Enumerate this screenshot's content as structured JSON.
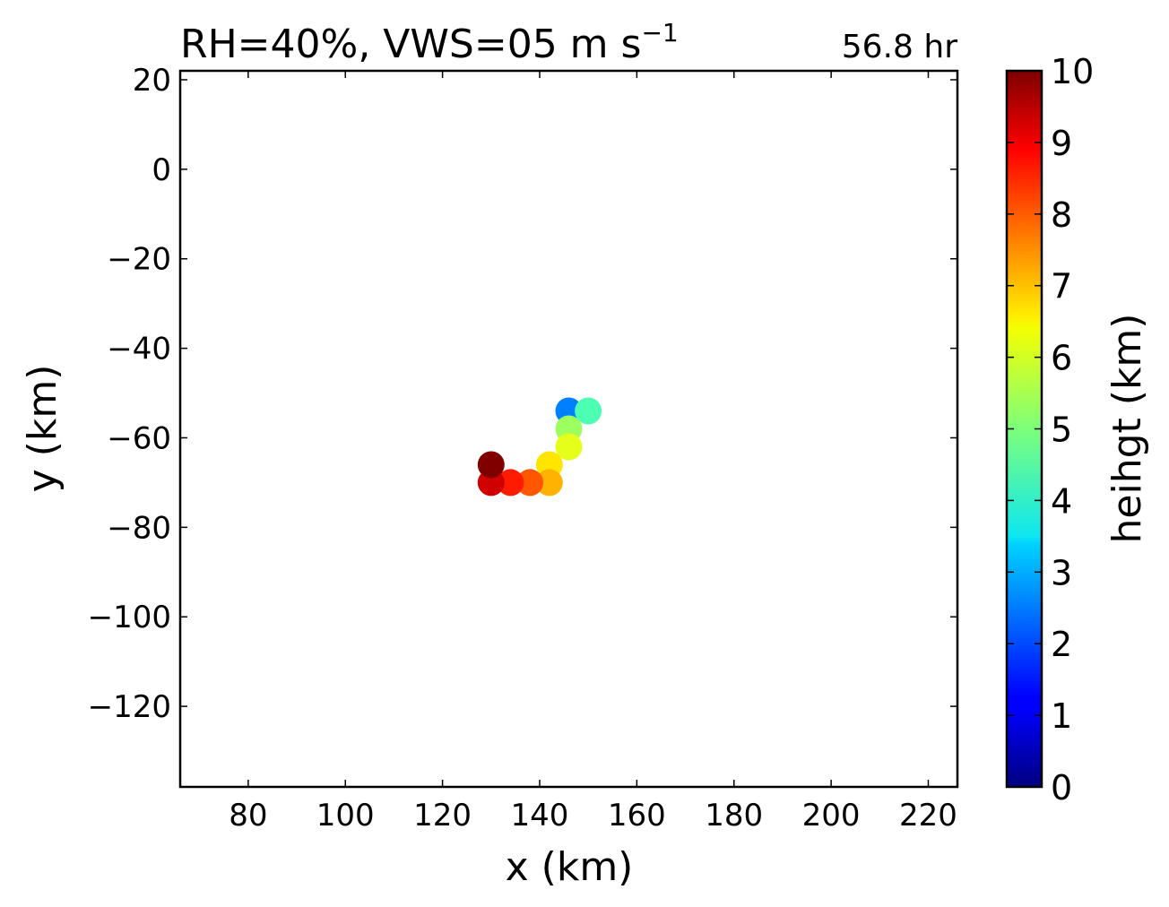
{
  "chart_data": {
    "type": "scatter",
    "title_main": "RH=40%, VWS=05 m s",
    "title_sup": "−1",
    "time_label": "56.8 hr",
    "time_label_color": "#0000ff",
    "xlabel": "x (km)",
    "ylabel": "y (km)",
    "xlim": [
      66,
      226
    ],
    "ylim": [
      -138,
      22
    ],
    "xticks": [
      80,
      100,
      120,
      140,
      160,
      180,
      200,
      220
    ],
    "yticks": [
      20,
      0,
      -20,
      -40,
      -60,
      -80,
      -100,
      -120
    ],
    "colorbar": {
      "label": "heihgt (km)",
      "colormap": "jet",
      "range": [
        0,
        10
      ],
      "ticks": [
        0,
        1,
        2,
        3,
        4,
        5,
        6,
        7,
        8,
        9,
        10
      ]
    },
    "points": [
      {
        "x": 146,
        "y": -54,
        "height": 2.5
      },
      {
        "x": 150,
        "y": -54,
        "height": 4.5
      },
      {
        "x": 146,
        "y": -58,
        "height": 5.3
      },
      {
        "x": 146,
        "y": -62,
        "height": 6.0
      },
      {
        "x": 142,
        "y": -66,
        "height": 6.5
      },
      {
        "x": 142,
        "y": -70,
        "height": 7.0
      },
      {
        "x": 138,
        "y": -70,
        "height": 7.9
      },
      {
        "x": 134,
        "y": -70,
        "height": 8.5
      },
      {
        "x": 130,
        "y": -70,
        "height": 9.2
      },
      {
        "x": 130,
        "y": -66,
        "height": 10.0
      }
    ]
  }
}
